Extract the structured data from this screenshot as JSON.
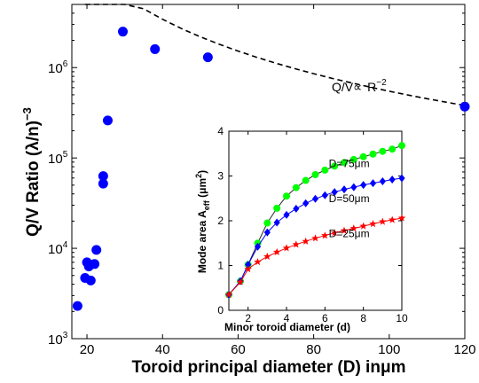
{
  "colors": {
    "main_points": "#0000ff",
    "fit_line": "#000000",
    "d75": "#00ff00",
    "d50": "#0000ff",
    "d25": "#ff0000"
  },
  "chart_data": [
    {
      "type": "scatter",
      "xlabel_prefix": "Toroid principal diameter (D) in",
      "xlabel_unit": "μm",
      "ylabel_text": "Q/V Ratio (λ/n)",
      "ylabel_exp": "−3",
      "xlim": [
        16,
        120
      ],
      "ylim": [
        1000,
        5000000
      ],
      "yscale": "log",
      "xticks": [
        20,
        40,
        60,
        80,
        100,
        120
      ],
      "yticks": [
        1000,
        10000,
        100000,
        1000000
      ],
      "ytick_exponents": [
        "3",
        "4",
        "5",
        "6"
      ],
      "ytick_base": "10",
      "grid": false,
      "series": [
        {
          "marker": "filled-circle",
          "points": [
            [
              17.5,
              2300
            ],
            [
              19.5,
              4700
            ],
            [
              20,
              7000
            ],
            [
              20.5,
              6300
            ],
            [
              21,
              4400
            ],
            [
              22,
              6700
            ],
            [
              22.5,
              9600
            ],
            [
              24.3,
              52000
            ],
            [
              24.3,
              63000
            ],
            [
              25.5,
              260000
            ],
            [
              29.5,
              2500000
            ],
            [
              38,
              1600000
            ],
            [
              52,
              1300000
            ],
            [
              120,
              370000
            ]
          ]
        },
        {
          "line": "dashed",
          "x": [
            19.5,
            22,
            25,
            30,
            35,
            40,
            45,
            50,
            55,
            60,
            65,
            70,
            75,
            80,
            85,
            90,
            95,
            100,
            105,
            110,
            115,
            120
          ]
        }
      ],
      "fit_coefficient": 5480000000,
      "annotation": {
        "text_prefix": "Q/V∝",
        "text_base": "R",
        "text_exp": "−2",
        "x": 76,
        "y": 550000
      }
    },
    {
      "type": "line",
      "xlabel": "Minor toroid diameter (d)",
      "ylabel_prefix": "Mode area A",
      "ylabel_sub": "eff",
      "ylabel_unit_open": " (μm",
      "ylabel_unit_exp": "2",
      "ylabel_unit_close": ")",
      "xlim": [
        1,
        10
      ],
      "ylim": [
        0,
        4
      ],
      "xticks": [
        2,
        4,
        6,
        8,
        10
      ],
      "yticks": [
        0,
        1,
        2,
        3,
        4
      ],
      "grid": false,
      "series": [
        {
          "name": "D=75μm",
          "marker": "circle",
          "x": [
            1,
            1.6,
            2,
            2.5,
            3,
            3.5,
            4,
            4.5,
            5,
            5.5,
            6,
            6.5,
            7,
            7.5,
            8,
            8.5,
            9,
            9.5,
            10
          ],
          "values": [
            0.35,
            0.65,
            1.02,
            1.5,
            1.95,
            2.28,
            2.55,
            2.74,
            2.9,
            3.03,
            3.13,
            3.22,
            3.3,
            3.37,
            3.43,
            3.49,
            3.55,
            3.6,
            3.68
          ],
          "label_pos": [
            6.2,
            3.2
          ]
        },
        {
          "name": "D=50μm",
          "marker": "diamond",
          "x": [
            1,
            1.6,
            2,
            2.5,
            3,
            3.5,
            4,
            4.5,
            5,
            5.5,
            6,
            6.5,
            7,
            7.5,
            8,
            8.5,
            9,
            9.5,
            10
          ],
          "values": [
            0.35,
            0.65,
            1.02,
            1.42,
            1.74,
            1.96,
            2.13,
            2.27,
            2.39,
            2.49,
            2.57,
            2.64,
            2.7,
            2.75,
            2.8,
            2.84,
            2.88,
            2.92,
            2.95
          ],
          "label_pos": [
            6.2,
            2.42
          ]
        },
        {
          "name": "D=25μm",
          "marker": "star",
          "x": [
            1,
            1.6,
            2,
            2.5,
            3,
            3.5,
            4,
            4.5,
            5,
            5.5,
            6,
            6.5,
            7,
            7.5,
            8,
            8.5,
            9,
            9.5,
            10
          ],
          "values": [
            0.35,
            0.63,
            0.92,
            1.08,
            1.2,
            1.3,
            1.39,
            1.47,
            1.54,
            1.61,
            1.67,
            1.73,
            1.78,
            1.83,
            1.88,
            1.93,
            1.98,
            2.02,
            2.06
          ],
          "label_pos": [
            6.2,
            1.63
          ]
        }
      ]
    }
  ]
}
